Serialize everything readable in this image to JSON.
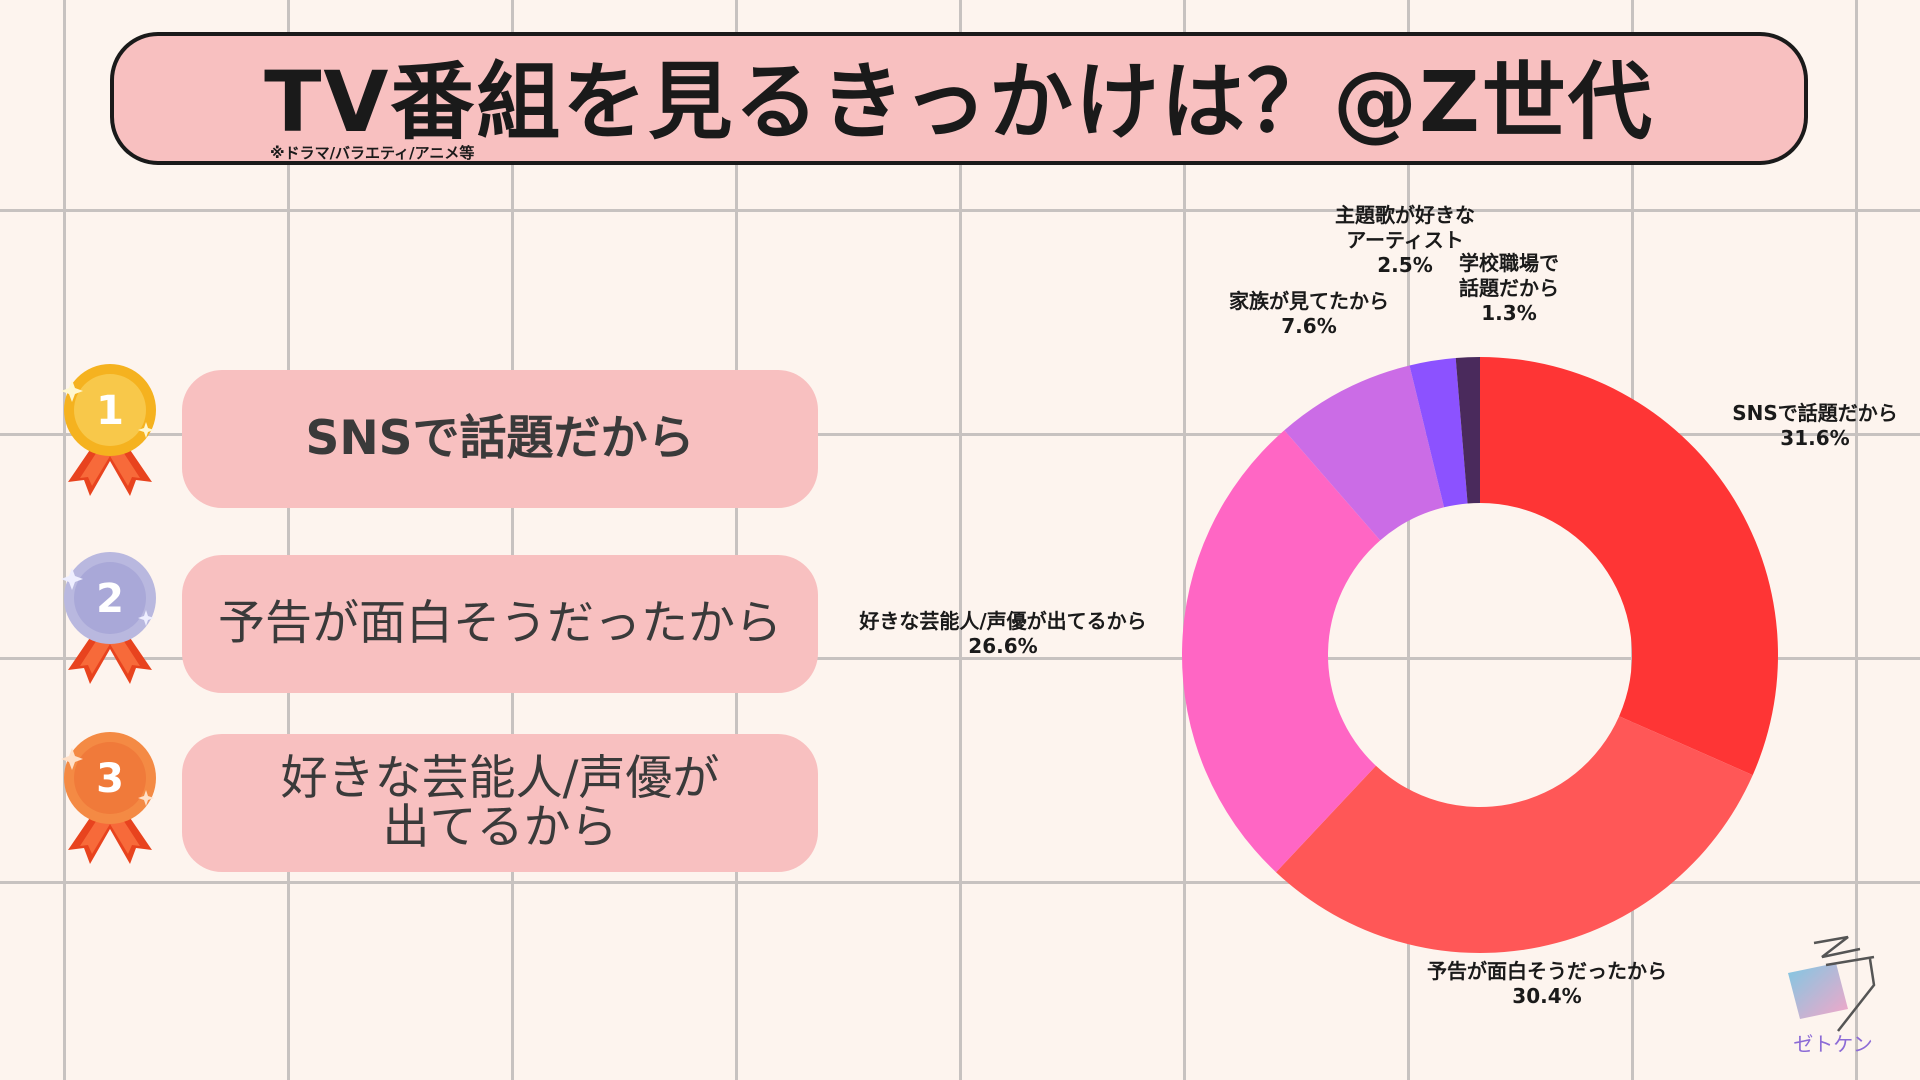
{
  "header": {
    "title": "TV番組を見るきっかけは？@Z世代",
    "note": "※ドラマ/バラエティ/アニメ等"
  },
  "ranking": [
    {
      "rank": "1",
      "label": "SNSで話題だから",
      "medal_color": "#f5b21f"
    },
    {
      "rank": "2",
      "label": "予告が面白そうだったから",
      "medal_color": "#a9a8d8"
    },
    {
      "rank": "3",
      "label": "好きな芸能人/声優が\n出てるから",
      "medal_color": "#f07a3a"
    }
  ],
  "chart_data": {
    "type": "donut",
    "title": "",
    "slices": [
      {
        "label": "SNSで話題だから",
        "value": 31.6,
        "display": "31.6%",
        "color": "#fe3535"
      },
      {
        "label": "予告が面白そうだったから",
        "value": 30.4,
        "display": "30.4%",
        "color": "#ff5757"
      },
      {
        "label": "好きな芸能人/声優が出てるから",
        "value": 26.6,
        "display": "26.6%",
        "color": "#ff66c4"
      },
      {
        "label": "家族が見てたから",
        "value": 7.6,
        "display": "7.6%",
        "color": "#cb6ce6"
      },
      {
        "label": "主題歌が好きなアーティスト",
        "value": 2.5,
        "display": "2.5%",
        "color": "#8c52ff"
      },
      {
        "label": "学校職場で話題だから",
        "value": 1.3,
        "display": "1.3%",
        "color": "#4a2a5c"
      }
    ],
    "labels": [
      {
        "lines": [
          "SNSで話題だから"
        ],
        "percent": "31.6%"
      },
      {
        "lines": [
          "予告が面白そうだったから"
        ],
        "percent": "30.4%"
      },
      {
        "lines": [
          "好きな芸能人/声優が出てるから"
        ],
        "percent": "26.6%"
      },
      {
        "lines": [
          "家族が見てたから"
        ],
        "percent": "7.6%"
      },
      {
        "lines": [
          "主題歌が好きな",
          "アーティスト"
        ],
        "percent": "2.5%"
      },
      {
        "lines": [
          "学校職場で",
          "話題だから"
        ],
        "percent": "1.3%"
      }
    ],
    "start_angle_deg": 0,
    "direction": "clockwise",
    "legend": "none"
  },
  "logo": {
    "text": "ゼトケン"
  }
}
